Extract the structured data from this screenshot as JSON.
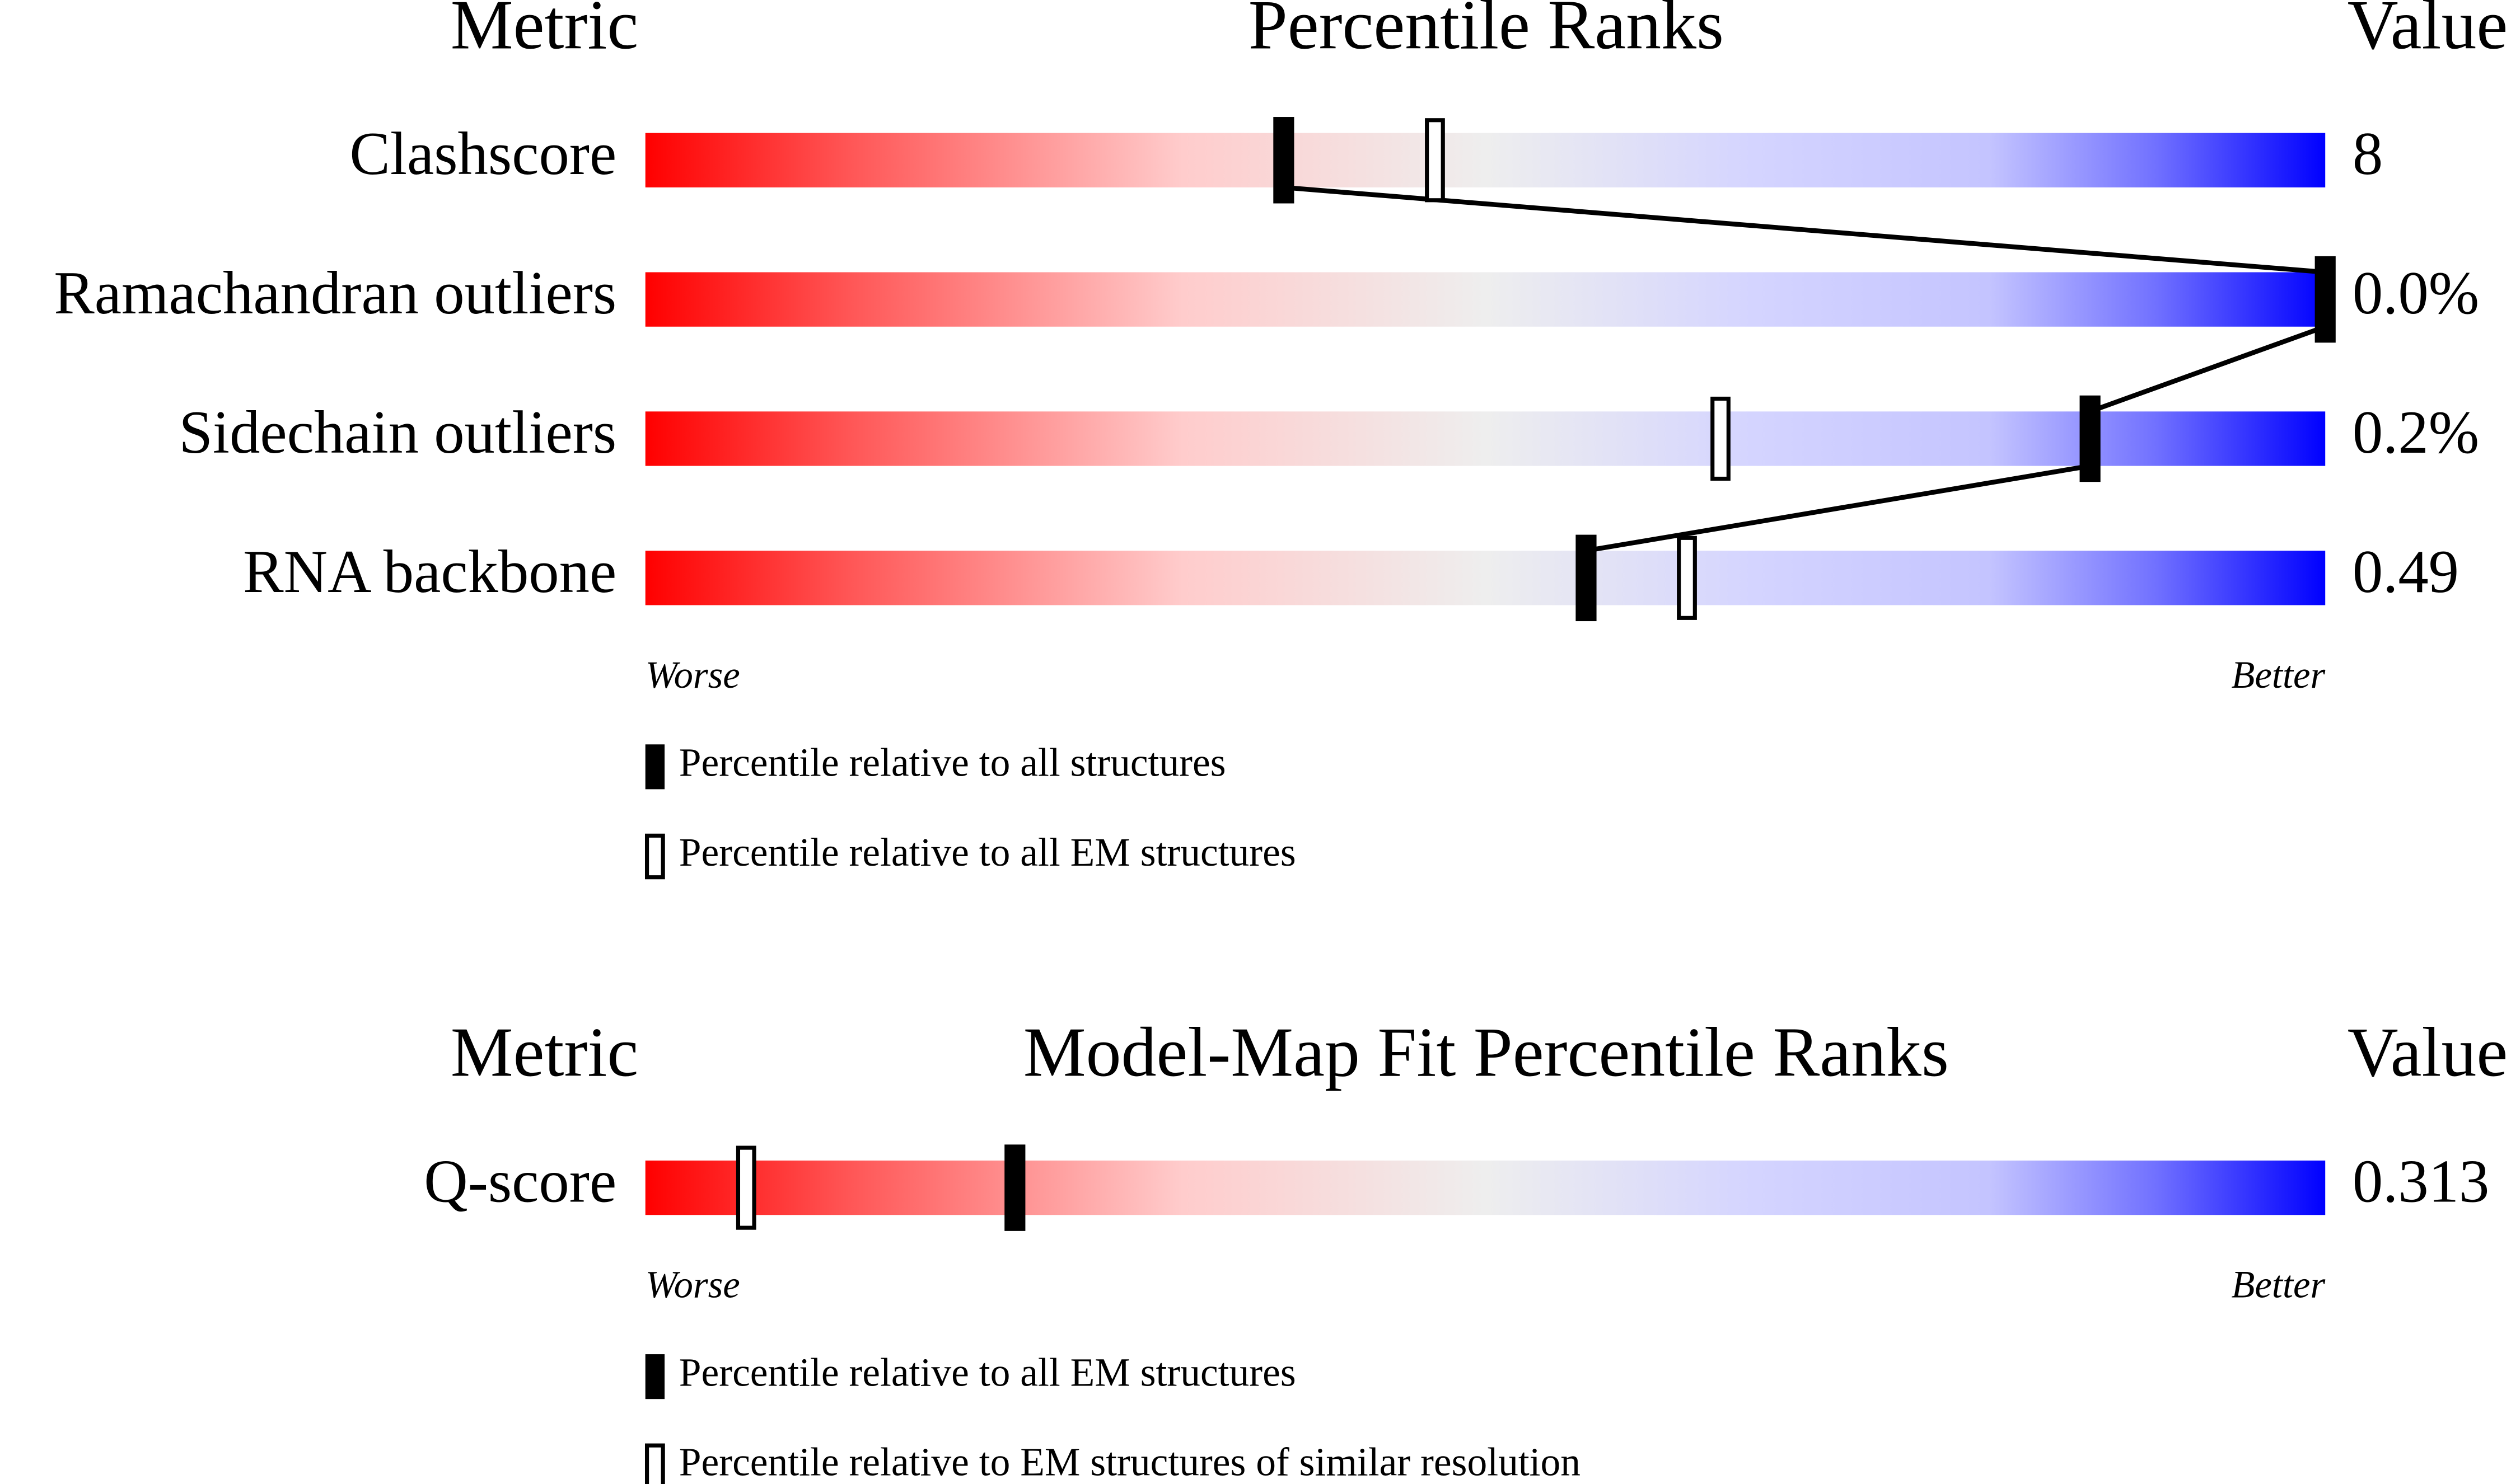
{
  "chart_data": [
    {
      "type": "percentile",
      "header_metric": "Metric",
      "title": "Percentile Ranks",
      "header_value": "Value",
      "categories": [
        "Clashscore",
        "Ramachandran outliers",
        "Sidechain outliers",
        "RNA backbone"
      ],
      "series": [
        {
          "name": "Percentile relative to all structures",
          "style": "filled",
          "color": "#000000",
          "values": [
            38,
            100,
            86,
            56
          ]
        },
        {
          "name": "Percentile relative to all EM structures",
          "style": "open",
          "color": "#000000",
          "values": [
            47,
            null,
            64,
            62
          ]
        }
      ],
      "value_labels": [
        "8",
        "0.0%",
        "0.2%",
        "0.49"
      ],
      "xlim": [
        0,
        100
      ],
      "low_label": "Worse",
      "high_label": "Better",
      "connect": true
    },
    {
      "type": "percentile",
      "header_metric": "Metric",
      "title": "Model-Map Fit Percentile Ranks",
      "header_value": "Value",
      "categories": [
        "Q-score"
      ],
      "series": [
        {
          "name": "Percentile relative to all EM structures",
          "style": "filled",
          "color": "#000000",
          "values": [
            22
          ]
        },
        {
          "name": "Percentile relative to EM structures of similar resolution",
          "style": "open",
          "color": "#000000",
          "values": [
            6
          ]
        }
      ],
      "value_labels": [
        "0.313"
      ],
      "xlim": [
        0,
        100
      ],
      "low_label": "Worse",
      "high_label": "Better",
      "connect": false
    }
  ]
}
